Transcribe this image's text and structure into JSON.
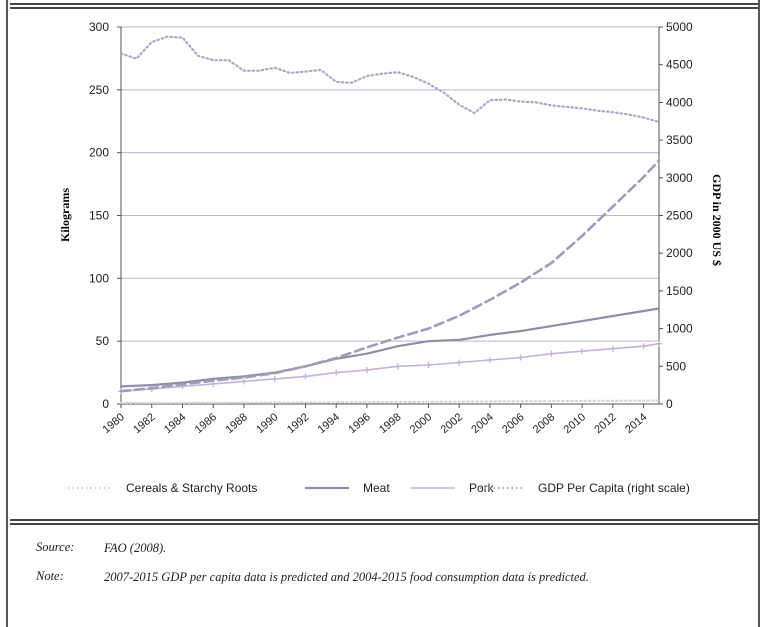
{
  "chart_data": {
    "type": "line",
    "ylabel": "Kilograms",
    "y2label": "GDP in 2000 US $",
    "ylim": [
      0,
      300
    ],
    "y2lim": [
      0,
      5000
    ],
    "yticks": [
      0,
      50,
      100,
      150,
      200,
      250,
      300
    ],
    "y2ticks": [
      0,
      500,
      1000,
      1500,
      2000,
      2500,
      3000,
      3500,
      4000,
      4500,
      5000
    ],
    "xticks": [
      "1980",
      "1982",
      "1984",
      "1986",
      "1988",
      "1990",
      "1992",
      "1994",
      "1996",
      "1998",
      "2000",
      "2002",
      "2004",
      "2006",
      "2008",
      "2010",
      "2012",
      "2014"
    ],
    "xlim": [
      1980,
      2015
    ],
    "grid": "horizontal",
    "legend_position": "bottom",
    "series": [
      {
        "name": "Cereals & Starchy Roots",
        "axis": "right",
        "style": "dotted",
        "color": "#d6d6d6",
        "x": [
          1980,
          1981,
          1982,
          1983,
          1984,
          1985,
          1986,
          1987,
          1988,
          1989,
          1990,
          1991,
          1992,
          1993,
          1994,
          1995,
          1996,
          1997,
          1998,
          1999,
          2000,
          2001,
          2002,
          2003,
          2004,
          2005,
          2006,
          2007,
          2008,
          2009,
          2010,
          2011,
          2012,
          2013,
          2014,
          2015
        ],
        "values": [
          14,
          14,
          14,
          15,
          15,
          16,
          16,
          17,
          17,
          18,
          18,
          19,
          20,
          20,
          21,
          22,
          23,
          24,
          25,
          27,
          28,
          30,
          31,
          32,
          34,
          35,
          36,
          37,
          38,
          40,
          41,
          42,
          43,
          44,
          45,
          47
        ]
      },
      {
        "name": "Meat",
        "axis": "left",
        "style": "solid",
        "color": "#8e8ea6",
        "x": [
          1980,
          1982,
          1984,
          1986,
          1988,
          1990,
          1992,
          1994,
          1996,
          1998,
          2000,
          2002,
          2004,
          2006,
          2008,
          2010,
          2012,
          2014,
          2015
        ],
        "values": [
          14,
          15,
          17,
          20,
          22,
          25,
          30,
          36,
          40,
          46,
          50,
          51,
          55,
          58,
          62,
          66,
          70,
          74,
          76
        ]
      },
      {
        "name": "Pork",
        "axis": "left",
        "style": "marker",
        "color": "#c5b4d8",
        "x": [
          1980,
          1982,
          1984,
          1986,
          1988,
          1990,
          1992,
          1994,
          1996,
          1998,
          2000,
          2002,
          2004,
          2006,
          2008,
          2010,
          2012,
          2014,
          2015
        ],
        "values": [
          10,
          12,
          14,
          16,
          18,
          20,
          22,
          25,
          27,
          30,
          31,
          33,
          35,
          37,
          40,
          42,
          44,
          46,
          48
        ]
      },
      {
        "name": "GDP Per Capita (right scale)",
        "axis": "right",
        "style": "dotted",
        "color": "#a9a9c6",
        "x": [
          1980,
          1981,
          1982,
          1983,
          1984,
          1985,
          1986,
          1987,
          1988,
          1989,
          1990,
          1991,
          1992,
          1993,
          1994,
          1995,
          1996,
          1997,
          1998,
          1999,
          2000,
          2001,
          2002,
          2003,
          2004,
          2005,
          2006,
          2007,
          2008,
          2009,
          2010,
          2011,
          2012,
          2013,
          2014,
          2015
        ],
        "values": [
          4650,
          4580,
          4800,
          4870,
          4860,
          4620,
          4560,
          4560,
          4420,
          4420,
          4460,
          4390,
          4410,
          4430,
          4270,
          4260,
          4350,
          4380,
          4400,
          4340,
          4250,
          4130,
          3970,
          3860,
          4030,
          4040,
          4010,
          4000,
          3960,
          3940,
          3920,
          3890,
          3870,
          3840,
          3800,
          3740
        ]
      },
      {
        "name": "GDP (dashed, right scale)",
        "axis": "right",
        "style": "dashed",
        "color": "#9e9eb8",
        "legend": false,
        "x": [
          1980,
          1982,
          1984,
          1986,
          1988,
          1990,
          1992,
          1994,
          1996,
          1998,
          2000,
          2002,
          2004,
          2006,
          2008,
          2010,
          2012,
          2014,
          2015
        ],
        "values": [
          170,
          210,
          260,
          310,
          350,
          410,
          500,
          610,
          750,
          880,
          1000,
          1170,
          1380,
          1610,
          1870,
          2230,
          2620,
          3010,
          3230
        ]
      }
    ]
  },
  "notes": {
    "source_label": "Source:",
    "source_text": "FAO (2008).",
    "note_label": "Note:",
    "note_text": "2007-2015 GDP per capita data is predicted and 2004-2015 food consumption data is predicted."
  }
}
